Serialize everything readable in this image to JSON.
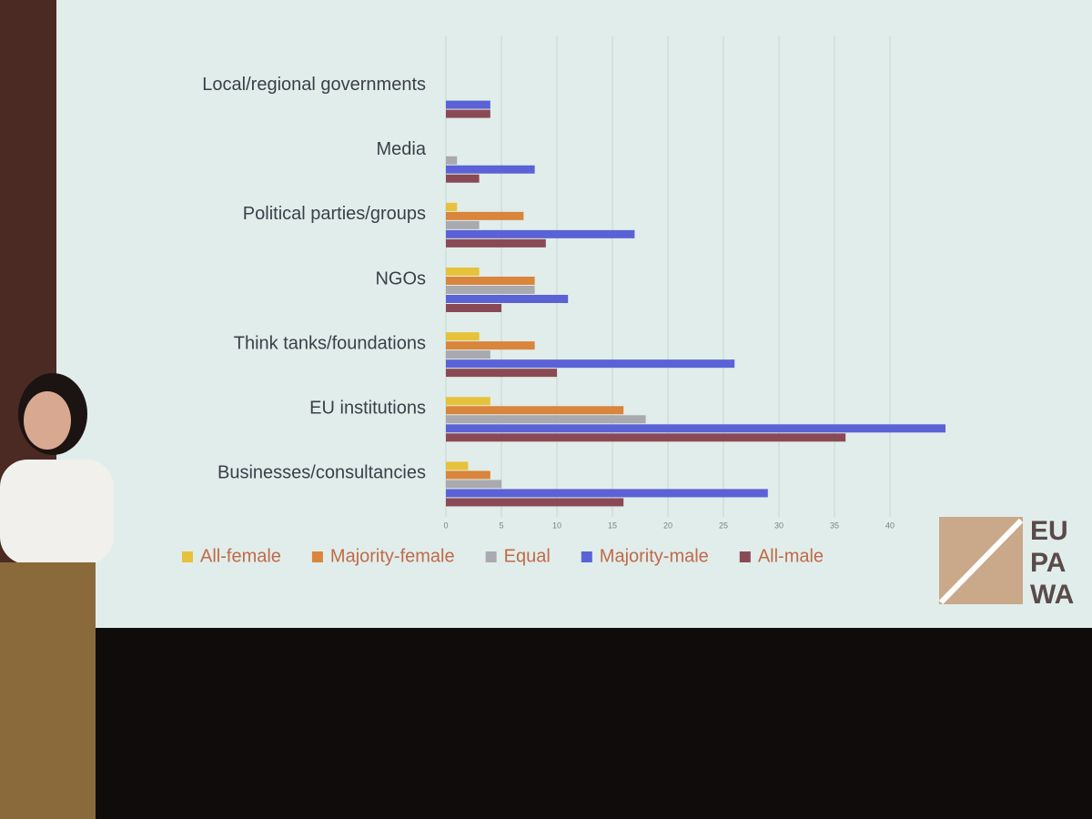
{
  "chart_data": {
    "type": "bar",
    "orientation": "horizontal",
    "categories": [
      "Local/regional governments",
      "Media",
      "Political parties/groups",
      "NGOs",
      "Think tanks/foundations",
      "EU institutions",
      "Businesses/consultancies"
    ],
    "series": [
      {
        "name": "All-female",
        "color": "#e6c23a",
        "values": [
          0,
          0,
          1,
          3,
          3,
          4,
          2
        ]
      },
      {
        "name": "Majority-female",
        "color": "#d9853b",
        "values": [
          0,
          0,
          7,
          8,
          8,
          16,
          4
        ]
      },
      {
        "name": "Equal",
        "color": "#a9a9b0",
        "values": [
          0,
          1,
          3,
          8,
          4,
          18,
          5
        ]
      },
      {
        "name": "Majority-male",
        "color": "#5b62d6",
        "values": [
          4,
          8,
          17,
          11,
          26,
          45,
          29
        ]
      },
      {
        "name": "All-male",
        "color": "#8a4a55",
        "values": [
          4,
          3,
          9,
          5,
          10,
          36,
          16
        ]
      }
    ],
    "xlim": [
      0,
      50
    ],
    "xticks": [
      0,
      5,
      10,
      15,
      20,
      25,
      30,
      35,
      40
    ],
    "grid": true,
    "legend": "bottom"
  },
  "logo_text": [
    "EU",
    "PA",
    "WA"
  ]
}
